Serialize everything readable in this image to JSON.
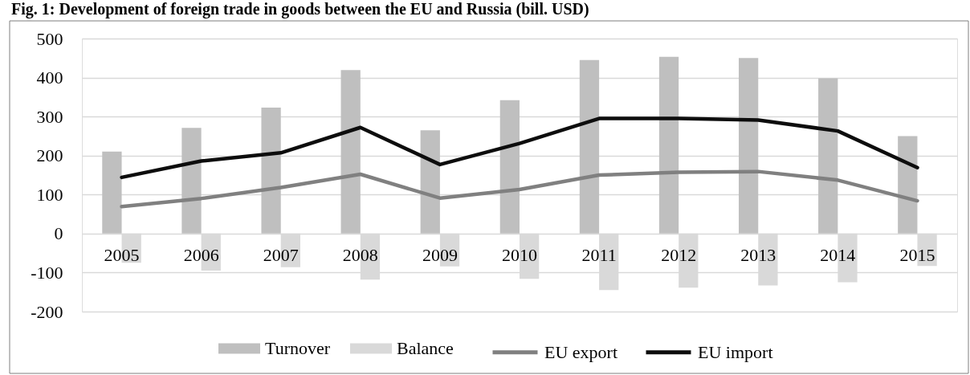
{
  "chart_data": {
    "type": "bar",
    "title": "Fig. 1: Development of foreign trade in goods between the EU and Russia (bill. USD)",
    "categories": [
      "2005",
      "2006",
      "2007",
      "2008",
      "2009",
      "2010",
      "2011",
      "2012",
      "2013",
      "2014",
      "2015"
    ],
    "series": [
      {
        "name": "Turnover",
        "color": "#bfbfbf",
        "values": [
          210,
          271,
          323,
          419,
          265,
          342,
          445,
          453,
          450,
          398,
          250
        ]
      },
      {
        "name": "Balance",
        "color": "#d9d9d9",
        "values": [
          -75,
          -95,
          -86,
          -118,
          -84,
          -116,
          -145,
          -139,
          -133,
          -125,
          -83
        ]
      },
      {
        "name": "EU export",
        "type": "line",
        "color": "#808080",
        "values": [
          69,
          90,
          118,
          152,
          91,
          113,
          150,
          157,
          159,
          137,
          84
        ]
      },
      {
        "name": "EU import",
        "type": "line",
        "color": "#0d0d0d",
        "values": [
          144,
          186,
          207,
          272,
          177,
          231,
          295,
          295,
          291,
          263,
          169
        ]
      }
    ],
    "ylim": [
      -200,
      500
    ],
    "yticks": [
      -200,
      -100,
      0,
      100,
      200,
      300,
      400,
      500
    ],
    "grid": "y",
    "legend": "bottom"
  }
}
